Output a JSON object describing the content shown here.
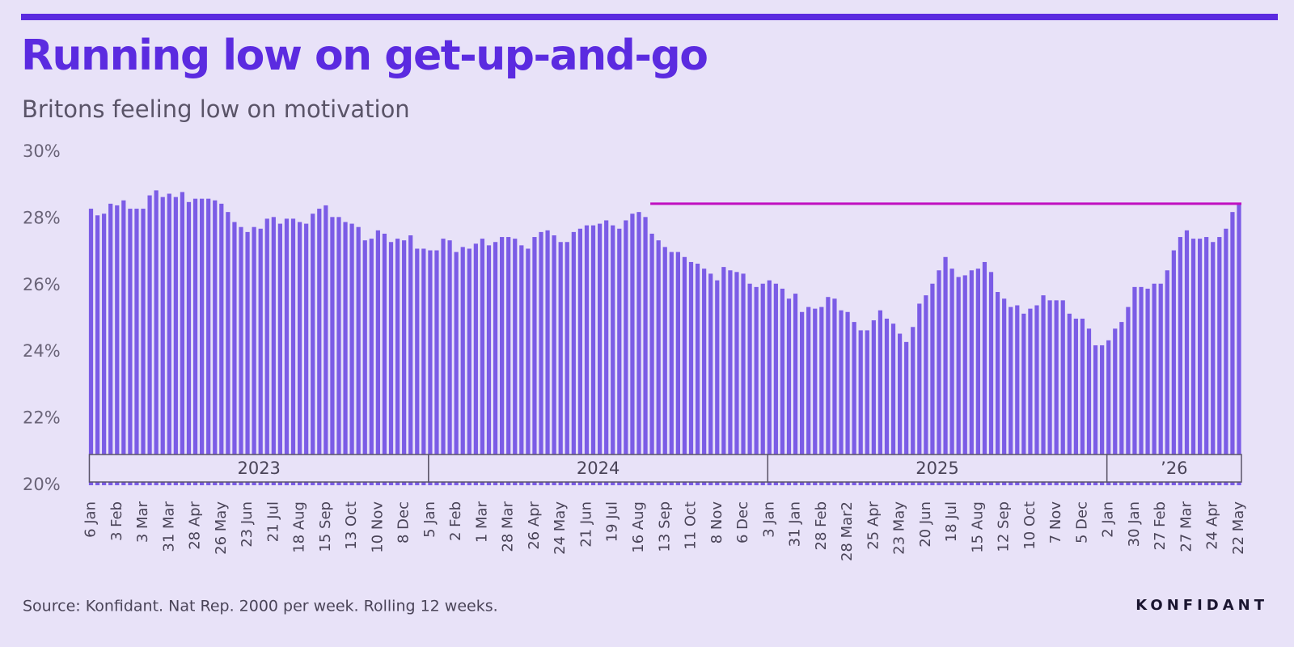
{
  "title": "Running low on get-up-and-go",
  "subtitle": "Britons feeling low on motivation",
  "source": "Source: Konfidant. Nat Rep. 2000 per week. Rolling 12 weeks.",
  "brand": "KONFIDANT",
  "chart_data": {
    "type": "bar",
    "categories": [
      "6 Jan",
      null,
      null,
      null,
      "3 Feb",
      null,
      null,
      null,
      "3 Mar",
      null,
      null,
      null,
      "31 Mar",
      null,
      null,
      null,
      "28 Apr",
      null,
      null,
      null,
      "26 May",
      null,
      null,
      null,
      "23 Jun",
      null,
      null,
      null,
      "21 Jul",
      null,
      null,
      null,
      "18 Aug",
      null,
      null,
      null,
      "15 Sep",
      null,
      null,
      null,
      "13 Oct",
      null,
      null,
      null,
      "10 Nov",
      null,
      null,
      null,
      "8 Dec",
      null,
      null,
      null,
      "5 Jan",
      null,
      null,
      null,
      "2 Feb",
      null,
      null,
      null,
      "1 Mar",
      null,
      null,
      null,
      "28 Mar",
      null,
      null,
      null,
      "26 Apr",
      null,
      null,
      null,
      "24 May",
      null,
      null,
      null,
      "21 Jun",
      null,
      null,
      null,
      "19 Jul",
      null,
      null,
      null,
      "16 Aug",
      null,
      null,
      null,
      "13 Sep",
      null,
      null,
      null,
      "11 Oct",
      null,
      null,
      null,
      "8 Nov",
      null,
      null,
      null,
      "6 Dec",
      null,
      null,
      null,
      "3 Jan",
      null,
      null,
      null,
      "31 Jan",
      null,
      null,
      null,
      "28 Feb",
      null,
      null,
      null,
      "28 Mar2",
      null,
      null,
      null,
      "25 Apr",
      null,
      null,
      null,
      "23 May",
      null,
      null,
      null,
      "20 Jun",
      null,
      null,
      null,
      "18 Jul",
      null,
      null,
      null,
      "15 Aug",
      null,
      null,
      null,
      "12 Sep",
      null,
      null,
      null,
      "10 Oct",
      null,
      null,
      null,
      "7 Nov",
      null,
      null,
      null,
      "5 Dec",
      null,
      null,
      null,
      "2 Jan",
      null,
      null,
      null,
      "30 Jan",
      null,
      null,
      null,
      "27 Feb",
      null,
      null,
      null,
      "27 Mar",
      null,
      null,
      null,
      "24 Apr",
      null,
      null,
      null,
      "22 May"
    ],
    "values": [
      28.3,
      28.1,
      28.15,
      28.45,
      28.4,
      28.55,
      28.3,
      28.3,
      28.3,
      28.7,
      28.85,
      28.65,
      28.75,
      28.65,
      28.8,
      28.5,
      28.6,
      28.6,
      28.6,
      28.55,
      28.45,
      28.2,
      27.9,
      27.75,
      27.6,
      27.75,
      27.7,
      28.0,
      28.05,
      27.85,
      28.0,
      28.0,
      27.9,
      27.85,
      28.15,
      28.3,
      28.4,
      28.05,
      28.05,
      27.9,
      27.85,
      27.75,
      27.35,
      27.4,
      27.65,
      27.55,
      27.3,
      27.4,
      27.35,
      27.5,
      27.1,
      27.1,
      27.05,
      27.05,
      27.4,
      27.35,
      27.0,
      27.15,
      27.1,
      27.25,
      27.4,
      27.2,
      27.3,
      27.45,
      27.45,
      27.4,
      27.2,
      27.1,
      27.45,
      27.6,
      27.65,
      27.5,
      27.3,
      27.3,
      27.6,
      27.7,
      27.8,
      27.8,
      27.85,
      27.95,
      27.8,
      27.7,
      27.95,
      28.15,
      28.2,
      28.05,
      27.55,
      27.35,
      27.15,
      27.0,
      27.0,
      26.85,
      26.7,
      26.65,
      26.5,
      26.35,
      26.15,
      26.55,
      26.45,
      26.4,
      26.35,
      26.05,
      25.95,
      26.05,
      26.15,
      26.05,
      25.9,
      25.6,
      25.75,
      25.2,
      25.35,
      25.3,
      25.35,
      25.65,
      25.6,
      25.25,
      25.2,
      24.9,
      24.65,
      24.65,
      24.95,
      25.25,
      25.0,
      24.85,
      24.55,
      24.3,
      24.75,
      25.45,
      25.7,
      26.05,
      26.45,
      26.85,
      26.5,
      26.25,
      26.3,
      26.45,
      26.5,
      26.7,
      26.4,
      25.8,
      25.6,
      25.35,
      25.4,
      25.15,
      25.3,
      25.4,
      25.7,
      25.55,
      25.55,
      25.55,
      25.15,
      25.0,
      25.0,
      24.7,
      24.2,
      24.2,
      24.35,
      24.7,
      24.9,
      25.35,
      25.95,
      25.95,
      25.9,
      26.05,
      26.05,
      26.45,
      27.05,
      27.45,
      27.65,
      27.4,
      27.4,
      27.45,
      27.3,
      27.45,
      27.7,
      28.2,
      28.45
    ],
    "color": "#7b5ce6",
    "ylim": [
      20,
      30
    ],
    "yticks": [
      {
        "value": 20,
        "label": "20%"
      },
      {
        "value": 22,
        "label": "22%"
      },
      {
        "value": 24,
        "label": "24%"
      },
      {
        "value": 26,
        "label": "26%"
      },
      {
        "value": 28,
        "label": "28%"
      },
      {
        "value": 30,
        "label": "30%"
      }
    ],
    "years": [
      "2023",
      "2024",
      "2025",
      "’26"
    ],
    "reference_line": {
      "value": 28.45,
      "color": "#c010c0"
    }
  }
}
